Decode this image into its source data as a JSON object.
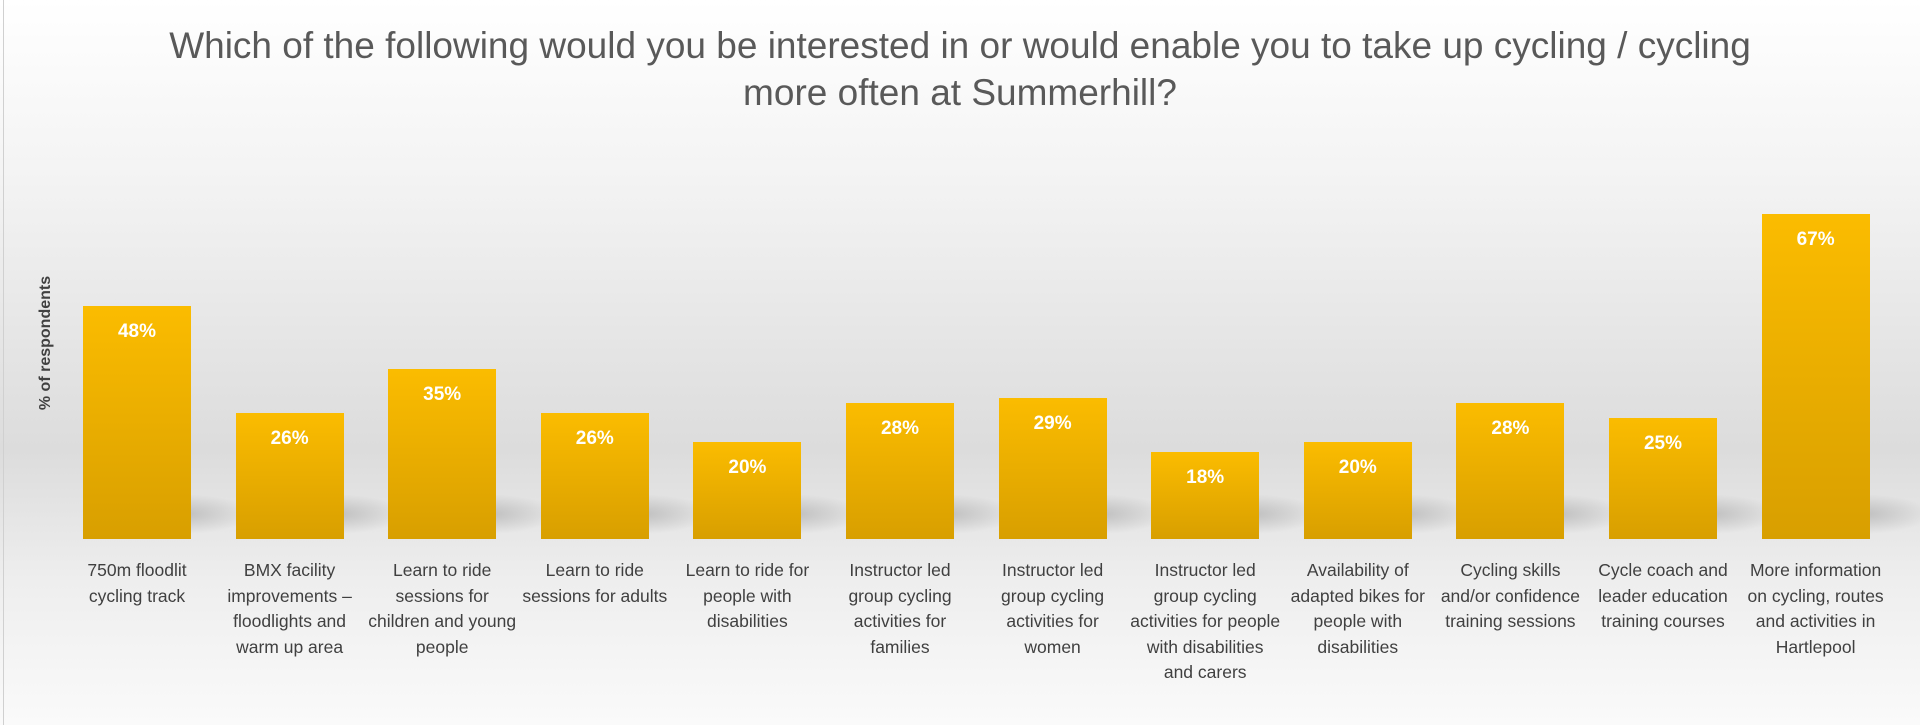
{
  "chart_data": {
    "type": "bar",
    "title": "Which of the following would you be interested in or would enable you to take up cycling / cycling more often at Summerhill?",
    "ylabel": "% of respondents",
    "xlabel": "",
    "ylim": [
      0,
      70
    ],
    "grid": false,
    "bar_color": "#FBBC00",
    "categories": [
      "750m floodlit cycling track",
      "BMX facility improvements – floodlights and warm up area",
      "Learn to ride sessions for children and young people",
      "Learn to ride sessions for adults",
      "Learn to ride for people with disabilities",
      "Instructor led group cycling activities for families",
      "Instructor led group cycling activities for women",
      "Instructor led group cycling activities for people with disabilities and carers",
      "Availability of adapted bikes for people with disabilities",
      "Cycling skills and/or confidence training sessions",
      "Cycle coach and leader education training courses",
      "More information on cycling, routes and activities in Hartlepool"
    ],
    "values": [
      48,
      26,
      35,
      26,
      20,
      28,
      29,
      18,
      20,
      28,
      25,
      67
    ],
    "data_labels": [
      "48%",
      "26%",
      "35%",
      "26%",
      "20%",
      "28%",
      "29%",
      "18%",
      "20%",
      "28%",
      "25%",
      "67%"
    ]
  }
}
